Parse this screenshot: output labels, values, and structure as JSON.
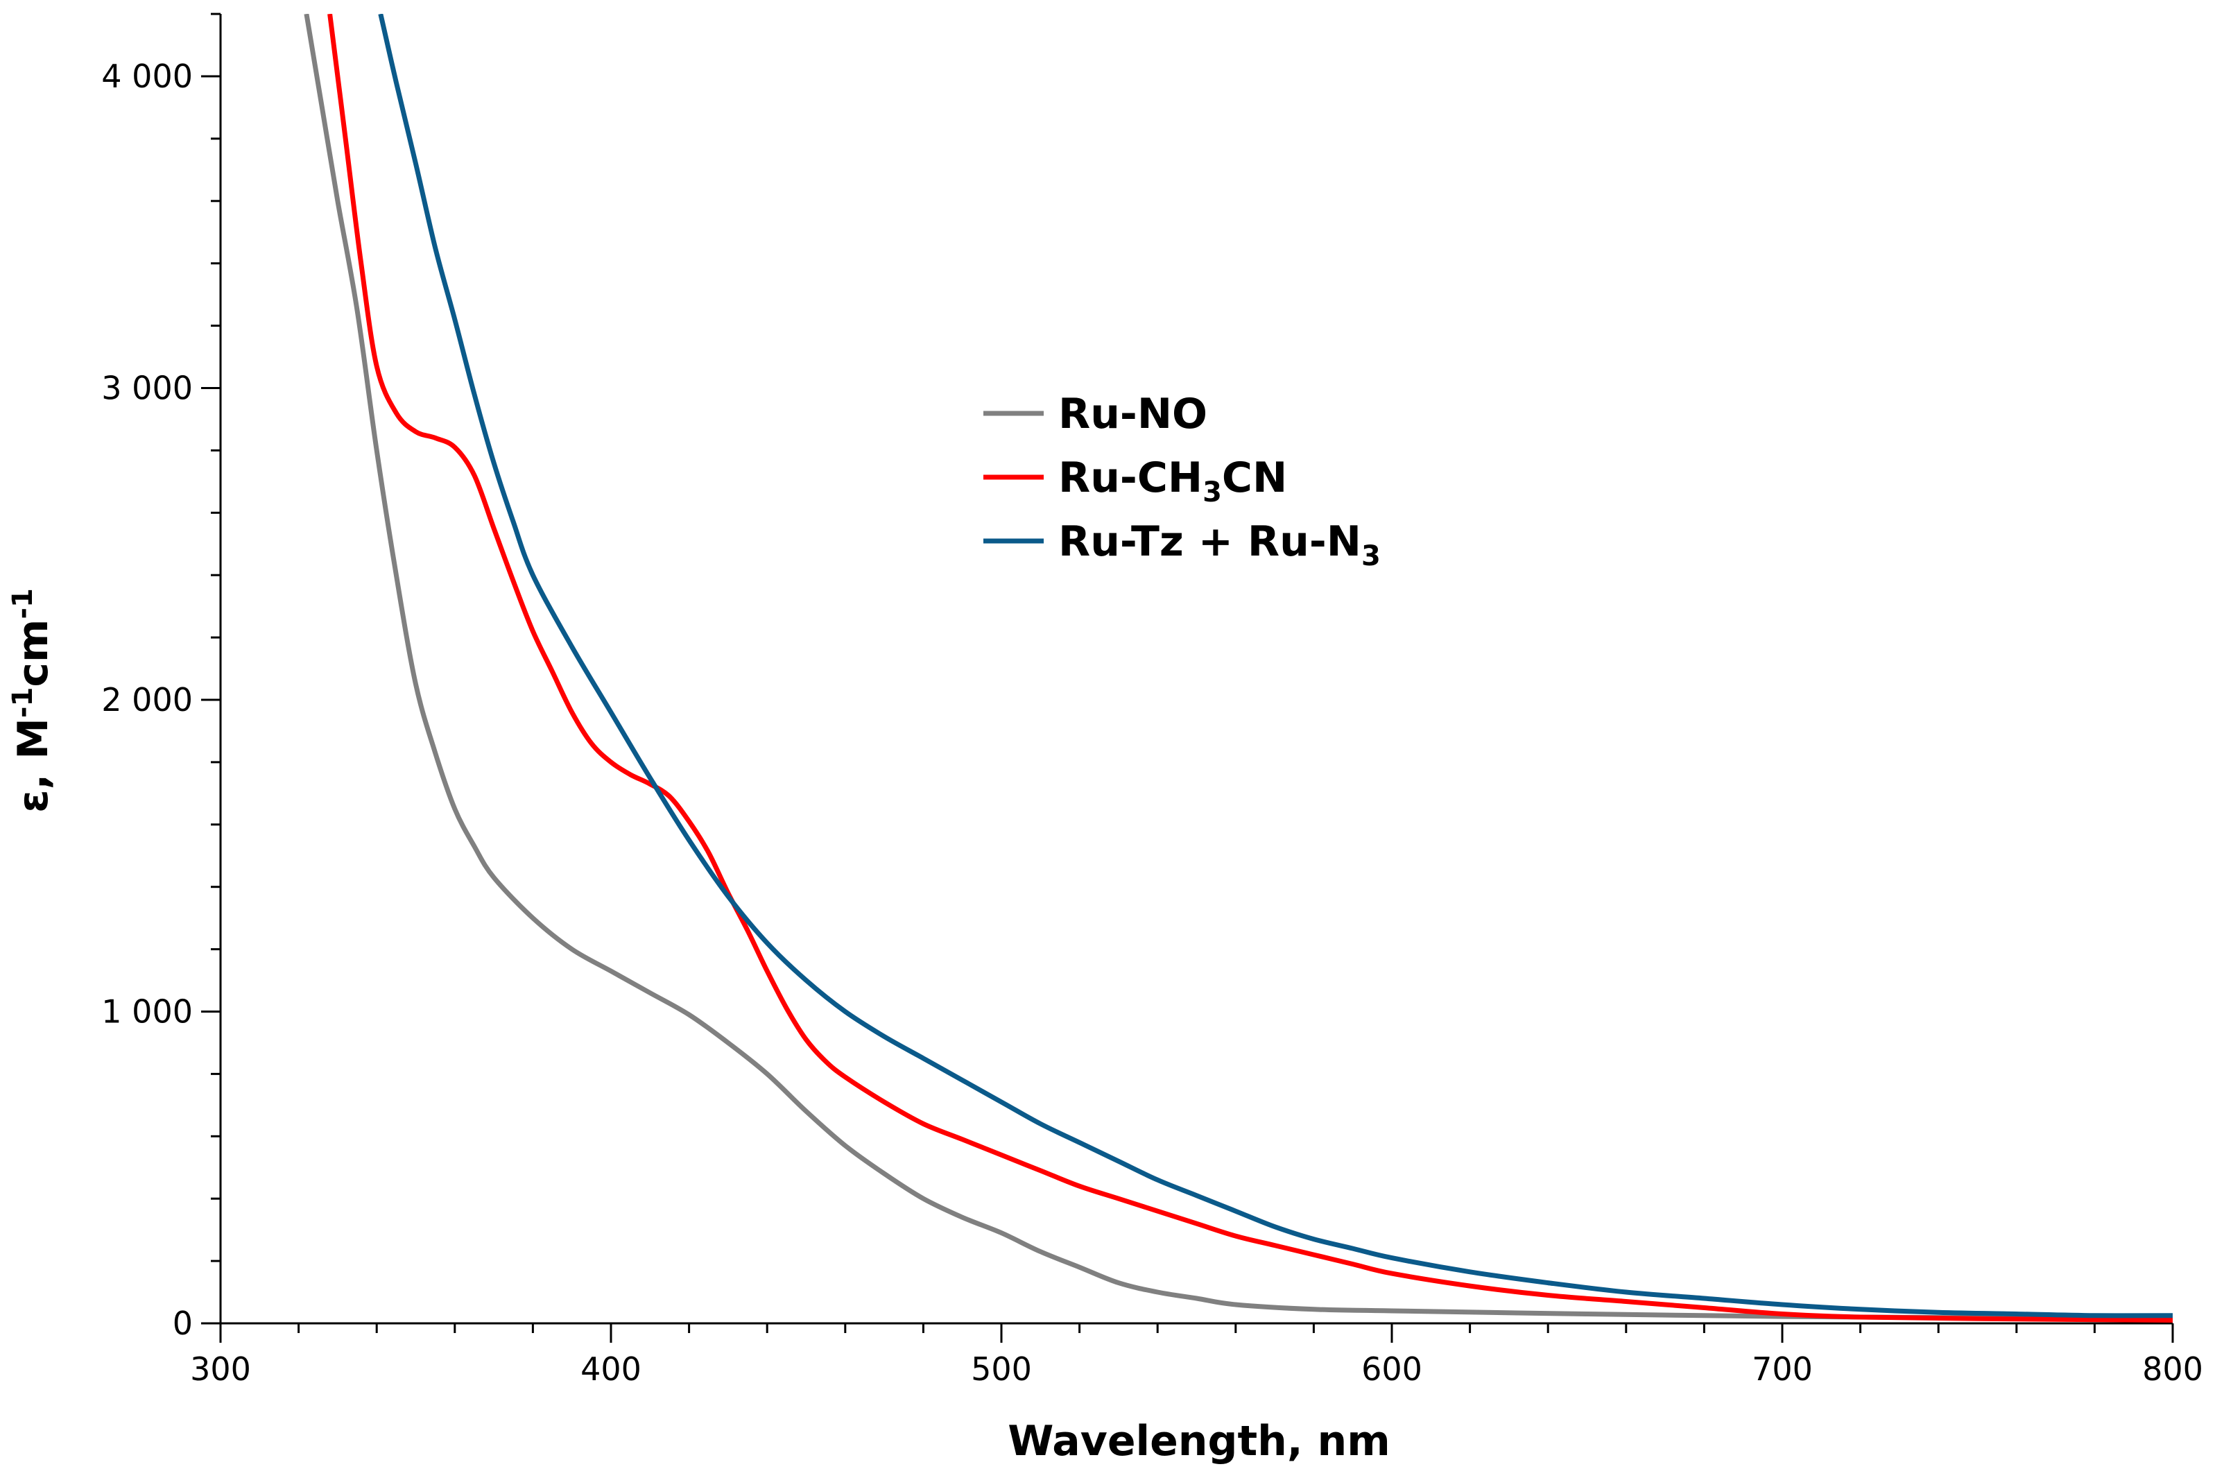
{
  "chart_data": {
    "type": "line",
    "title": "",
    "xlabel": "Wavelength, nm",
    "ylabel_main": "ε, M",
    "ylabel_exp1": "-1",
    "ylabel_mid": "cm",
    "ylabel_exp2": "-1",
    "xlim": [
      300,
      800
    ],
    "ylim": [
      0,
      4200
    ],
    "x_ticks": [
      300,
      400,
      500,
      600,
      700,
      800
    ],
    "x_tick_labels": [
      "300",
      "400",
      "500",
      "600",
      "700",
      "800"
    ],
    "y_ticks": [
      0,
      1000,
      2000,
      3000,
      4000
    ],
    "y_tick_labels": [
      "0",
      "1 000",
      "2 000",
      "3 000",
      "4 000"
    ],
    "x_minor_step": 20,
    "y_minor_step": 200,
    "legend_position": "center",
    "series": [
      {
        "name": "Ru-NO",
        "label_main": "Ru-NO",
        "label_sub": "",
        "label_tail": "",
        "color": "#808080",
        "points": [
          [
            322,
            4200
          ],
          [
            326,
            3900
          ],
          [
            330,
            3600
          ],
          [
            335,
            3250
          ],
          [
            340,
            2800
          ],
          [
            345,
            2400
          ],
          [
            350,
            2050
          ],
          [
            355,
            1830
          ],
          [
            360,
            1650
          ],
          [
            365,
            1530
          ],
          [
            370,
            1430
          ],
          [
            380,
            1300
          ],
          [
            390,
            1200
          ],
          [
            400,
            1130
          ],
          [
            410,
            1060
          ],
          [
            420,
            990
          ],
          [
            430,
            900
          ],
          [
            440,
            800
          ],
          [
            450,
            680
          ],
          [
            460,
            570
          ],
          [
            470,
            480
          ],
          [
            480,
            400
          ],
          [
            490,
            340
          ],
          [
            500,
            290
          ],
          [
            510,
            230
          ],
          [
            520,
            180
          ],
          [
            530,
            130
          ],
          [
            540,
            100
          ],
          [
            550,
            80
          ],
          [
            560,
            60
          ],
          [
            580,
            45
          ],
          [
            600,
            40
          ],
          [
            650,
            30
          ],
          [
            700,
            22
          ],
          [
            750,
            18
          ],
          [
            800,
            15
          ]
        ]
      },
      {
        "name": "Ru-CH3CN",
        "label_main": "Ru-CH",
        "label_sub": "3",
        "label_tail": "CN",
        "color": "#ff0000",
        "points": [
          [
            328,
            4200
          ],
          [
            332,
            3800
          ],
          [
            336,
            3400
          ],
          [
            340,
            3070
          ],
          [
            345,
            2920
          ],
          [
            350,
            2860
          ],
          [
            355,
            2840
          ],
          [
            360,
            2810
          ],
          [
            365,
            2720
          ],
          [
            370,
            2550
          ],
          [
            375,
            2380
          ],
          [
            380,
            2220
          ],
          [
            385,
            2090
          ],
          [
            390,
            1960
          ],
          [
            395,
            1860
          ],
          [
            400,
            1800
          ],
          [
            405,
            1760
          ],
          [
            410,
            1730
          ],
          [
            415,
            1690
          ],
          [
            420,
            1610
          ],
          [
            425,
            1510
          ],
          [
            430,
            1380
          ],
          [
            435,
            1260
          ],
          [
            440,
            1130
          ],
          [
            445,
            1010
          ],
          [
            450,
            910
          ],
          [
            455,
            840
          ],
          [
            460,
            790
          ],
          [
            470,
            710
          ],
          [
            480,
            640
          ],
          [
            490,
            590
          ],
          [
            500,
            540
          ],
          [
            510,
            490
          ],
          [
            520,
            440
          ],
          [
            530,
            400
          ],
          [
            540,
            360
          ],
          [
            550,
            320
          ],
          [
            560,
            280
          ],
          [
            570,
            250
          ],
          [
            580,
            220
          ],
          [
            590,
            190
          ],
          [
            600,
            160
          ],
          [
            620,
            120
          ],
          [
            640,
            90
          ],
          [
            660,
            70
          ],
          [
            680,
            50
          ],
          [
            700,
            30
          ],
          [
            720,
            20
          ],
          [
            750,
            15
          ],
          [
            800,
            10
          ]
        ]
      },
      {
        "name": "Ru-Tz + Ru-N3",
        "label_main": "Ru-Tz + Ru-N",
        "label_sub": "3",
        "label_tail": "",
        "color": "#0b5a8a",
        "points": [
          [
            341,
            4200
          ],
          [
            345,
            3980
          ],
          [
            350,
            3720
          ],
          [
            355,
            3450
          ],
          [
            360,
            3220
          ],
          [
            365,
            2980
          ],
          [
            370,
            2760
          ],
          [
            375,
            2570
          ],
          [
            380,
            2400
          ],
          [
            390,
            2170
          ],
          [
            400,
            1960
          ],
          [
            410,
            1750
          ],
          [
            420,
            1550
          ],
          [
            430,
            1370
          ],
          [
            440,
            1220
          ],
          [
            450,
            1100
          ],
          [
            460,
            1000
          ],
          [
            470,
            920
          ],
          [
            480,
            850
          ],
          [
            490,
            780
          ],
          [
            500,
            710
          ],
          [
            510,
            640
          ],
          [
            520,
            580
          ],
          [
            530,
            520
          ],
          [
            540,
            460
          ],
          [
            550,
            410
          ],
          [
            560,
            360
          ],
          [
            570,
            310
          ],
          [
            580,
            270
          ],
          [
            590,
            240
          ],
          [
            600,
            210
          ],
          [
            620,
            165
          ],
          [
            640,
            130
          ],
          [
            660,
            100
          ],
          [
            680,
            80
          ],
          [
            700,
            60
          ],
          [
            720,
            45
          ],
          [
            740,
            35
          ],
          [
            760,
            30
          ],
          [
            780,
            25
          ],
          [
            800,
            25
          ]
        ]
      }
    ]
  }
}
